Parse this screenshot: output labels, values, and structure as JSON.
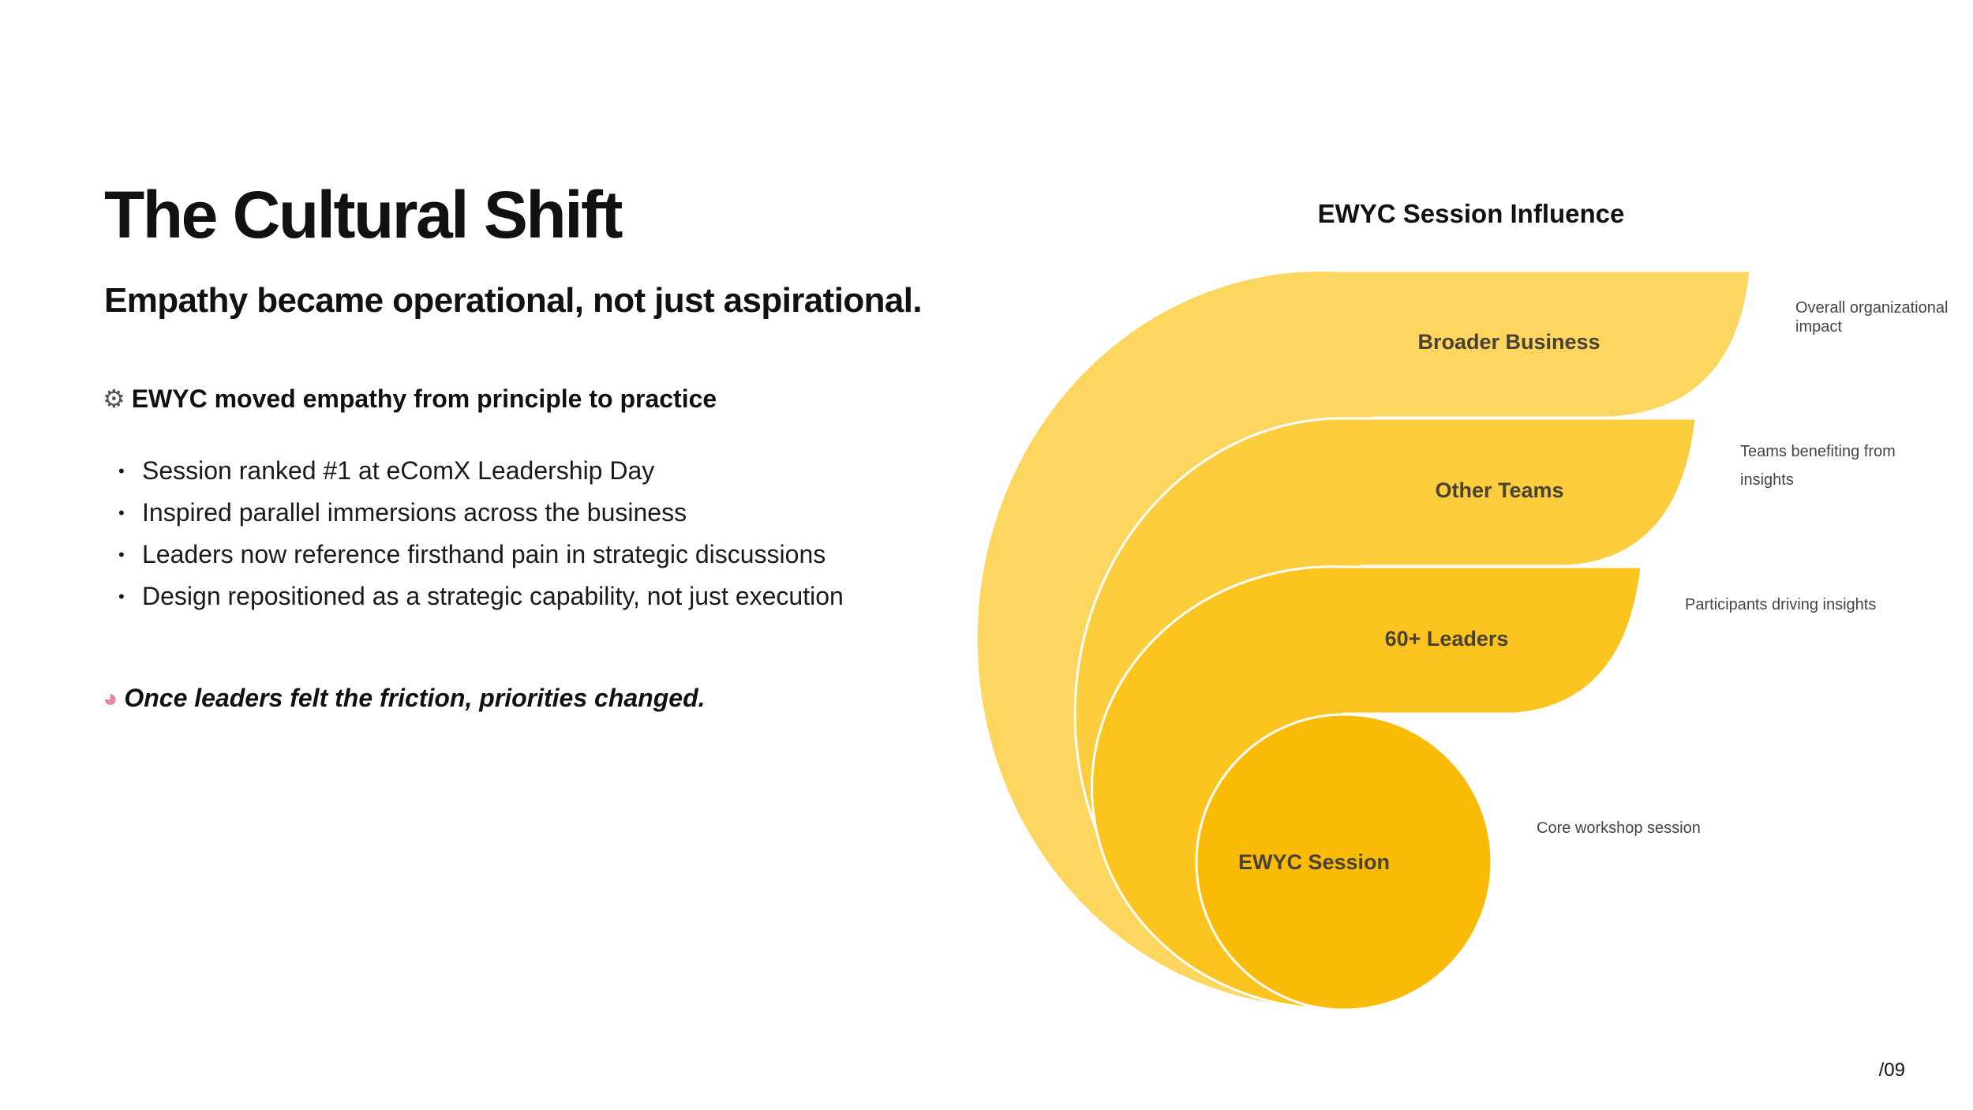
{
  "slide": {
    "title": "The Cultural Shift",
    "subtitle": "Empathy became operational, not just aspirational.",
    "section_heading": {
      "icon": "gear-icon",
      "text": "EWYC moved empathy from principle to practice"
    },
    "bullets": [
      "Session ranked #1 at eComX Leadership Day",
      "Inspired parallel immersions across the business",
      "Leaders now reference firsthand pain in strategic discussions",
      "Design repositioned as a strategic capability, not just execution"
    ],
    "callout": {
      "icon": "brain-icon",
      "text": "Once leaders felt the friction, priorities changed."
    },
    "page_number": "/09"
  },
  "diagram": {
    "title": "EWYC Session Influence",
    "layers": [
      {
        "label": "Broader Business",
        "description": [
          "Overall organizational",
          "impact"
        ],
        "color": "#fdd660"
      },
      {
        "label": "Other Teams",
        "description": [
          "Teams benefiting from",
          "insights"
        ],
        "color": "#fcce3e"
      },
      {
        "label": "60+ Leaders",
        "description": [
          "Participants driving insights"
        ],
        "color": "#fcc41e"
      },
      {
        "label": "EWYC Session",
        "description": [
          "Core workshop session"
        ],
        "color": "#fabb07"
      }
    ]
  }
}
